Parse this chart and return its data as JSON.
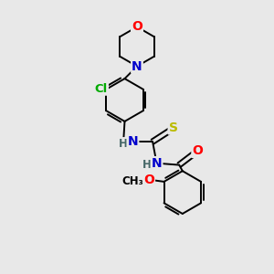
{
  "bg_color": "#e8e8e8",
  "bond_color": "#000000",
  "bond_width": 1.4,
  "atom_colors": {
    "O": "#ff0000",
    "N": "#0000cc",
    "S": "#bbbb00",
    "Cl": "#00aa00",
    "C": "#000000",
    "H": "#446666"
  },
  "font_size_atom": 10,
  "font_size_small": 8.5
}
